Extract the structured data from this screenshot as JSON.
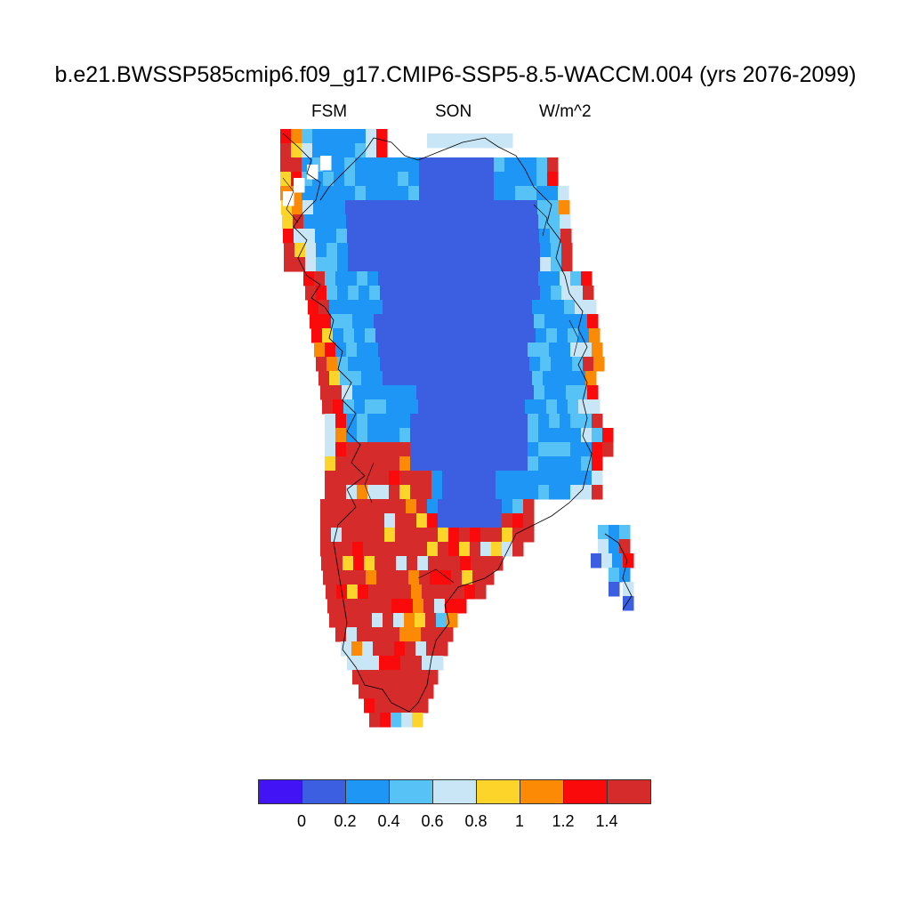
{
  "header": {
    "title": "b.e21.BWSSP585cmip6.f09_g17.CMIP6-SSP5-8.5-WACCM.004 (yrs 2076-2099)",
    "left_label": "FSM",
    "center_label": "SON",
    "units_label": "W/m^2"
  },
  "map": {
    "region": "Greenland",
    "field": "FSM",
    "season": "SON",
    "units": "W/m^2"
  },
  "colorbar": {
    "colors": [
      "#4213f4",
      "#3b5fe0",
      "#1e96f5",
      "#56c2f5",
      "#c8e6f5",
      "#fdd42a",
      "#fd8a05",
      "#fa0a0a",
      "#d62b2b"
    ],
    "ticks": [
      "0",
      "0.2",
      "0.4",
      "0.6",
      "0.8",
      "1",
      "1.2",
      "1.4"
    ]
  }
}
